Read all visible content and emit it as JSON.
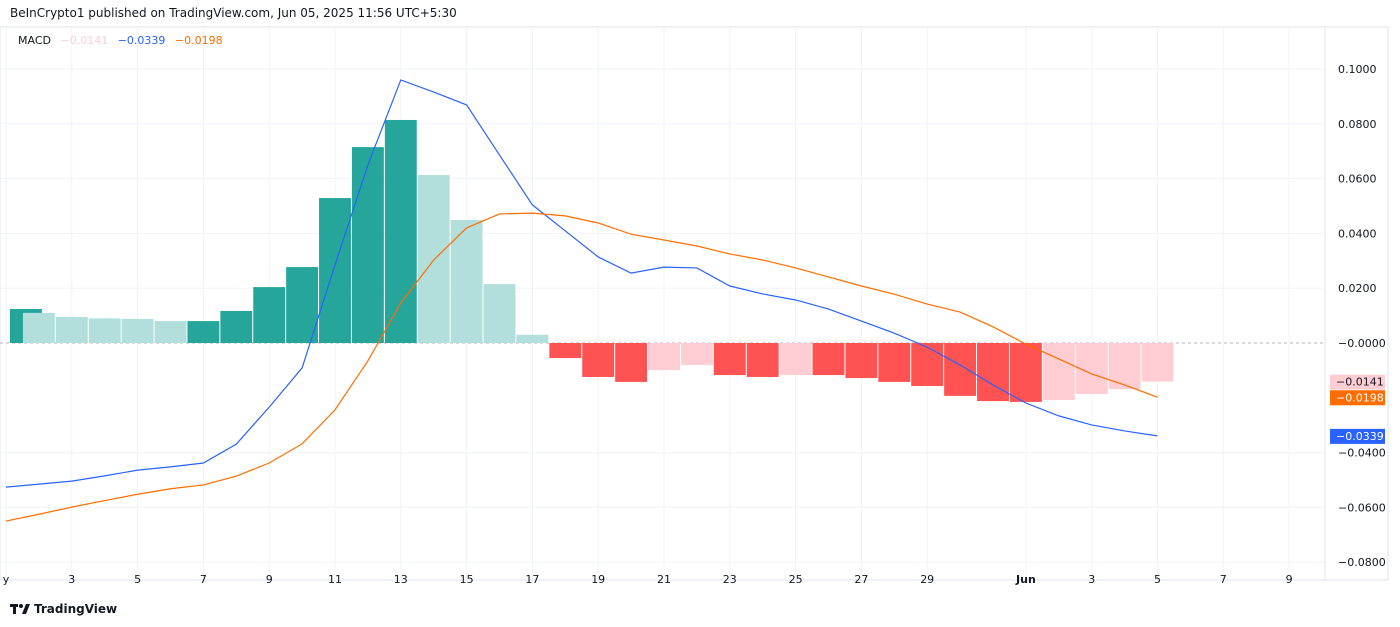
{
  "header": {
    "published": "BeInCrypto1 published on TradingView.com, Jun 05, 2025 11:56 UTC+5:30"
  },
  "legend": {
    "name": "MACD",
    "histogram": "−0.0141",
    "macd": "−0.0339",
    "signal": "−0.0198"
  },
  "footer": {
    "brand": "TradingView"
  },
  "colors": {
    "macd": "#2962ff",
    "signal": "#ff6d00",
    "hist_pos_up": "#26a69a",
    "hist_pos_down": "#b2dfdb",
    "hist_neg_down": "#ff5252",
    "hist_neg_up": "#ffcdd2"
  },
  "chart_data": {
    "type": "bar+line",
    "title": "MACD",
    "ylim": [
      -0.08,
      0.11
    ],
    "yticks": [
      "0.1000",
      "0.0800",
      "0.0600",
      "0.0400",
      "0.0200",
      "−0.0000",
      "−0.0400",
      "−0.0600",
      "−0.0800"
    ],
    "ytick_values": [
      0.1,
      0.08,
      0.06,
      0.04,
      0.02,
      0,
      -0.04,
      -0.06,
      -0.08
    ],
    "xticks": [
      "y",
      "3",
      "5",
      "7",
      "9",
      "11",
      "13",
      "15",
      "17",
      "19",
      "21",
      "23",
      "25",
      "27",
      "29",
      "Jun",
      "3",
      "5",
      "7",
      "9"
    ],
    "xtick_days": [
      1,
      3,
      5,
      7,
      9,
      11,
      13,
      15,
      17,
      19,
      21,
      23,
      25,
      27,
      29,
      32,
      34,
      36,
      38,
      40
    ],
    "x": [
      "May 1",
      "May 2",
      "May 3",
      "May 4",
      "May 5",
      "May 6",
      "May 7",
      "May 8",
      "May 9",
      "May 10",
      "May 11",
      "May 12",
      "May 13",
      "May 14",
      "May 15",
      "May 16",
      "May 17",
      "May 18",
      "May 19",
      "May 20",
      "May 21",
      "May 22",
      "May 23",
      "May 24",
      "May 25",
      "May 26",
      "May 27",
      "May 28",
      "May 29",
      "May 30",
      "May 31",
      "Jun 1",
      "Jun 2",
      "Jun 3",
      "Jun 4",
      "Jun 5"
    ],
    "series": [
      {
        "name": "Histogram",
        "type": "bar",
        "values": [
          0.0124,
          0.011,
          0.0095,
          0.009,
          0.0088,
          0.008,
          0.008,
          0.0117,
          0.0204,
          0.0277,
          0.0529,
          0.0715,
          0.0814,
          0.0613,
          0.0449,
          0.0215,
          0.003,
          -0.0055,
          -0.0124,
          -0.0142,
          -0.0099,
          -0.008,
          -0.0117,
          -0.0124,
          -0.0117,
          -0.0117,
          -0.0128,
          -0.0142,
          -0.0157,
          -0.0193,
          -0.0212,
          -0.0215,
          -0.0208,
          -0.0186,
          -0.0168,
          -0.0141
        ]
      },
      {
        "name": "MACD",
        "type": "line",
        "values": [
          -0.0526,
          -0.0515,
          -0.0504,
          -0.0485,
          -0.0464,
          -0.0452,
          -0.0438,
          -0.0369,
          -0.0234,
          -0.0091,
          0.0285,
          0.065,
          0.096,
          0.0916,
          0.0869,
          0.0686,
          0.0504,
          0.0409,
          0.0314,
          0.0255,
          0.0277,
          0.0274,
          0.0208,
          0.0179,
          0.0157,
          0.0124,
          0.008,
          0.0036,
          -0.0015,
          -0.008,
          -0.0153,
          -0.0219,
          -0.0266,
          -0.0299,
          -0.0321,
          -0.0339
        ]
      },
      {
        "name": "Signal",
        "type": "line",
        "values": [
          -0.065,
          -0.0625,
          -0.0599,
          -0.0575,
          -0.0552,
          -0.0532,
          -0.0518,
          -0.0486,
          -0.0438,
          -0.0368,
          -0.0244,
          -0.0065,
          0.0146,
          0.0303,
          0.042,
          0.0471,
          0.0474,
          0.0464,
          0.0438,
          0.0397,
          0.0376,
          0.0354,
          0.0325,
          0.0303,
          0.0274,
          0.0241,
          0.0208,
          0.0178,
          0.0142,
          0.0113,
          0.0059,
          -0.0004,
          -0.0058,
          -0.0113,
          -0.0153,
          -0.0198
        ]
      }
    ],
    "last_value_labels": {
      "histogram": "−0.0141",
      "signal": "−0.0198",
      "macd": "−0.0339"
    },
    "grid": true
  }
}
